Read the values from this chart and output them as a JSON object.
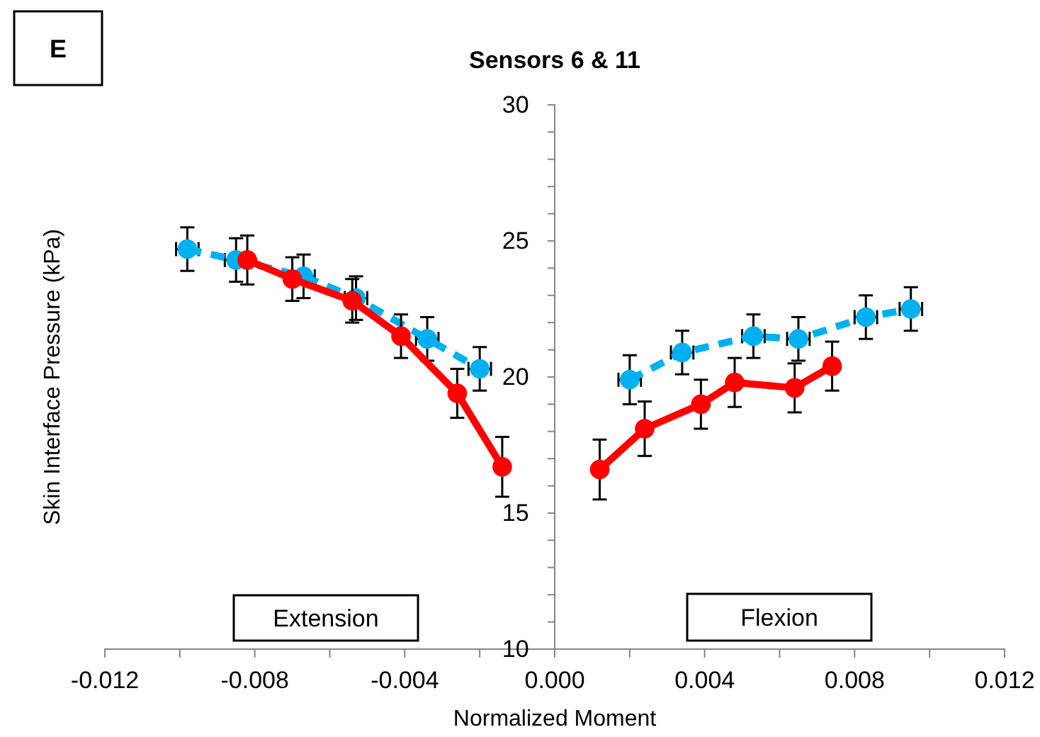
{
  "chart_data": {
    "type": "line",
    "title": "Sensors 6 & 11",
    "xlabel": "Normalized Moment",
    "ylabel": "Skin Interface Pressure (kPa)",
    "annotations": [
      "E",
      "Extension",
      "Flexion"
    ],
    "xlim": [
      -0.012,
      0.012
    ],
    "ylim": [
      10,
      30
    ],
    "xticks": [
      -0.012,
      {
        "value": -0.01,
        "label": null
      },
      -0.008,
      {
        "value": -0.006,
        "label": null
      },
      -0.004,
      {
        "value": -0.002,
        "label": null
      },
      "0.000",
      {
        "value": 0.002,
        "label": null
      },
      0.004,
      {
        "value": 0.006,
        "label": null
      },
      0.008,
      {
        "value": 0.01,
        "label": null
      },
      0.012
    ],
    "yticks": [
      10,
      {
        "value": 11,
        "label": null
      },
      {
        "value": 12,
        "label": null
      },
      {
        "value": 13,
        "label": null
      },
      {
        "value": 14,
        "label": null
      },
      15,
      {
        "value": 16,
        "label": null
      },
      {
        "value": 17,
        "label": null
      },
      {
        "value": 18,
        "label": null
      },
      {
        "value": 19,
        "label": null
      },
      20,
      {
        "value": 21,
        "label": null
      },
      {
        "value": 22,
        "label": null
      },
      {
        "value": 23,
        "label": null
      },
      {
        "value": 24,
        "label": null
      },
      25,
      {
        "value": 26,
        "label": null
      },
      {
        "value": 27,
        "label": null
      },
      {
        "value": 28,
        "label": null
      },
      {
        "value": 29,
        "label": null
      },
      30
    ],
    "grid": false,
    "marker": "circle",
    "series": [
      {
        "color": "#00b0f0",
        "line_style": "dashed",
        "x": [
          -0.0098,
          -0.0085,
          -0.0067,
          -0.0053,
          -0.0034,
          -0.002,
          null,
          0.002,
          0.0034,
          0.0053,
          0.0065,
          0.0083,
          0.0095
        ],
        "values": [
          24.7,
          24.3,
          23.7,
          22.9,
          21.4,
          20.3,
          null,
          19.9,
          20.9,
          21.5,
          21.4,
          22.2,
          22.5
        ],
        "errors": [
          0.8,
          0.8,
          0.8,
          0.8,
          0.8,
          0.8,
          null,
          0.9,
          0.8,
          0.8,
          0.8,
          0.8,
          0.8
        ],
        "xerrors": [
          0.0003,
          0.0003,
          0.0003,
          0.0003,
          0.0003,
          0.0003,
          null,
          0.0003,
          0.0003,
          0.0003,
          0.0003,
          0.0003,
          0.0003
        ]
      },
      {
        "color": "#ff0000",
        "line_style": "solid",
        "x": [
          -0.0082,
          -0.007,
          -0.0054,
          -0.0041,
          -0.0026,
          -0.0014,
          null,
          0.0012,
          0.0024,
          0.0039,
          0.0048,
          0.0064,
          0.0074
        ],
        "values": [
          24.3,
          23.6,
          22.8,
          21.5,
          19.4,
          16.7,
          null,
          16.6,
          18.1,
          19,
          19.8,
          19.6,
          20.4
        ],
        "errors": [
          0.9,
          0.8,
          0.8,
          0.8,
          0.9,
          1.1,
          null,
          1.1,
          1,
          0.9,
          0.9,
          0.9,
          0.9
        ]
      }
    ]
  }
}
